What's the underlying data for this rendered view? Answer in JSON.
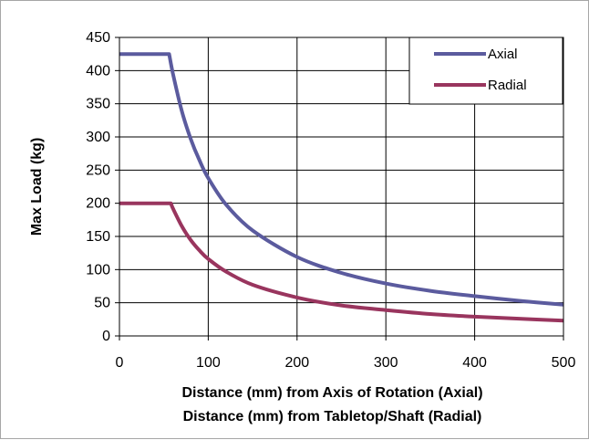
{
  "chart_data": {
    "type": "line",
    "xlabel_lines": [
      "Distance (mm) from Axis of Rotation (Axial)",
      "Distance (mm) from Tabletop/Shaft (Radial)"
    ],
    "ylabel": "Max Load (kg)",
    "xlim": [
      0,
      500
    ],
    "ylim": [
      0,
      450
    ],
    "x_ticks": [
      0,
      100,
      200,
      300,
      400,
      500
    ],
    "y_ticks": [
      0,
      50,
      100,
      150,
      200,
      250,
      300,
      350,
      400,
      450
    ],
    "grid": true,
    "legend_position": "top-right",
    "series": [
      {
        "name": "Axial",
        "color": "#5b5b9e",
        "x": [
          0,
          56,
          60,
          70,
          80,
          90,
          100,
          120,
          150,
          200,
          250,
          300,
          350,
          400,
          450,
          500
        ],
        "values": [
          425,
          425,
          397,
          340,
          298,
          265,
          238,
          198,
          159,
          119,
          95,
          79,
          68,
          60,
          53,
          47
        ]
      },
      {
        "name": "Radial",
        "color": "#99355e",
        "x": [
          0,
          58,
          60,
          70,
          80,
          90,
          100,
          120,
          150,
          200,
          250,
          300,
          350,
          400,
          450,
          500
        ],
        "values": [
          200,
          200,
          193,
          166,
          145,
          129,
          116,
          97,
          77,
          58,
          46,
          39,
          33,
          29,
          26,
          23
        ]
      }
    ]
  }
}
